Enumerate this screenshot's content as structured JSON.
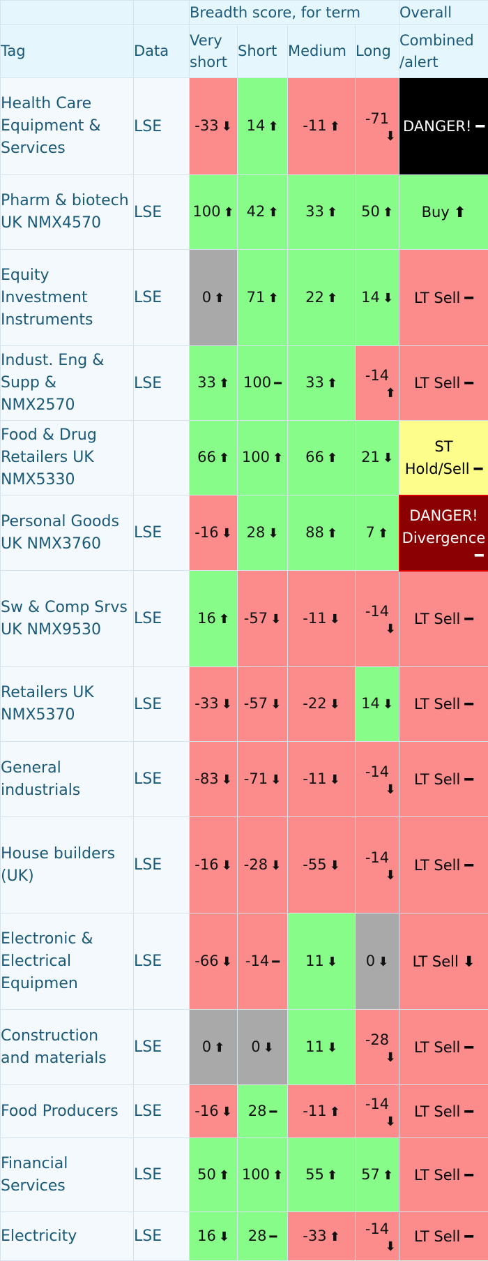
{
  "header": {
    "group_breadth": "Breadth score, for term",
    "group_overall": "Overall",
    "col_tag": "Tag",
    "col_data": "Data",
    "col_very_short_line1": "Very",
    "col_very_short_line2": "short",
    "col_short": "Short",
    "col_medium": "Medium",
    "col_long": "Long",
    "col_combined_line1": "Combined",
    "col_combined_line2": "/alert"
  },
  "colors": {
    "green": "#88fc88",
    "red": "#fc8c8c",
    "grey": "#a9a9a9",
    "black": "#000000",
    "yellow": "#fdfd8c",
    "maroon": "#8b0000",
    "header_bg": "#e6f6fd",
    "header_text": "#1a5a78"
  },
  "rows": [
    {
      "tag_lines": [
        "Health Care",
        "Equipment &",
        "Services"
      ],
      "data": "LSE",
      "scores": [
        {
          "value": "-33",
          "arrow": "down",
          "color": "red"
        },
        {
          "value": "14",
          "arrow": "up",
          "color": "green"
        },
        {
          "value": "-11",
          "arrow": "up",
          "color": "red"
        },
        {
          "value": "-71",
          "arrow": "down",
          "color": "red",
          "wrap": true
        }
      ],
      "overall": {
        "text": "DANGER!",
        "arrow": "flat",
        "color": "black"
      }
    },
    {
      "tag_lines": [
        "Pharm & biotech",
        "UK NMX4570"
      ],
      "data": "LSE",
      "scores": [
        {
          "value": "100",
          "arrow": "up",
          "color": "green"
        },
        {
          "value": "42",
          "arrow": "up",
          "color": "green"
        },
        {
          "value": "33",
          "arrow": "up",
          "color": "green"
        },
        {
          "value": "50",
          "arrow": "up",
          "color": "green"
        }
      ],
      "overall": {
        "text": "Buy",
        "arrow": "up",
        "color": "green"
      }
    },
    {
      "tag_lines": [
        "Equity",
        "Investment",
        "Instruments"
      ],
      "data": "LSE",
      "scores": [
        {
          "value": "0",
          "arrow": "up",
          "color": "grey"
        },
        {
          "value": "71",
          "arrow": "up",
          "color": "green"
        },
        {
          "value": "22",
          "arrow": "up",
          "color": "green"
        },
        {
          "value": "14",
          "arrow": "down",
          "color": "green"
        }
      ],
      "overall": {
        "text": "LT Sell",
        "arrow": "flat",
        "color": "red"
      }
    },
    {
      "tag_lines": [
        "Indust. Eng &",
        "Supp &",
        "NMX2570"
      ],
      "data": "LSE",
      "scores": [
        {
          "value": "33",
          "arrow": "up",
          "color": "green"
        },
        {
          "value": "100",
          "arrow": "flat",
          "color": "green"
        },
        {
          "value": "33",
          "arrow": "up",
          "color": "green"
        },
        {
          "value": "-14",
          "arrow": "up",
          "color": "red",
          "wrap": true
        }
      ],
      "overall": {
        "text": "LT Sell",
        "arrow": "flat",
        "color": "red"
      }
    },
    {
      "tag_lines": [
        "Food & Drug",
        "Retailers UK",
        "NMX5330"
      ],
      "data": "",
      "scores": [
        {
          "value": "66",
          "arrow": "up",
          "color": "green"
        },
        {
          "value": "100",
          "arrow": "up",
          "color": "green"
        },
        {
          "value": "66",
          "arrow": "up",
          "color": "green"
        },
        {
          "value": "21",
          "arrow": "down",
          "color": "green"
        }
      ],
      "overall": {
        "text_lines": [
          "ST",
          "Hold/Sell"
        ],
        "arrow": "flat",
        "color": "yellow"
      }
    },
    {
      "tag_lines": [
        "Personal Goods",
        "UK NMX3760"
      ],
      "data": "LSE",
      "scores": [
        {
          "value": "-16",
          "arrow": "down",
          "color": "red"
        },
        {
          "value": "28",
          "arrow": "down",
          "color": "green"
        },
        {
          "value": "88",
          "arrow": "up",
          "color": "green"
        },
        {
          "value": "7",
          "arrow": "up",
          "color": "green"
        }
      ],
      "overall": {
        "text_lines": [
          "DANGER!",
          "Divergence"
        ],
        "arrow": "flat",
        "color": "maroon",
        "arrow_wrap": true
      }
    },
    {
      "tag_lines": [
        "Sw & Comp Srvs",
        "UK NMX9530"
      ],
      "data": "LSE",
      "scores": [
        {
          "value": "16",
          "arrow": "up",
          "color": "green"
        },
        {
          "value": "-57",
          "arrow": "down",
          "color": "red"
        },
        {
          "value": "-11",
          "arrow": "down",
          "color": "red"
        },
        {
          "value": "-14",
          "arrow": "down",
          "color": "red",
          "wrap": true
        }
      ],
      "overall": {
        "text": "LT Sell",
        "arrow": "flat",
        "color": "red"
      }
    },
    {
      "tag_lines": [
        "Retailers UK",
        "NMX5370"
      ],
      "data": "LSE",
      "scores": [
        {
          "value": "-33",
          "arrow": "down",
          "color": "red"
        },
        {
          "value": "-57",
          "arrow": "down",
          "color": "red"
        },
        {
          "value": "-22",
          "arrow": "down",
          "color": "red"
        },
        {
          "value": "14",
          "arrow": "down",
          "color": "green"
        }
      ],
      "overall": {
        "text": "LT Sell",
        "arrow": "flat",
        "color": "red"
      }
    },
    {
      "tag_lines": [
        "General",
        "industrials"
      ],
      "data": "LSE",
      "scores": [
        {
          "value": "-83",
          "arrow": "down",
          "color": "red"
        },
        {
          "value": "-71",
          "arrow": "down",
          "color": "red"
        },
        {
          "value": "-11",
          "arrow": "down",
          "color": "red"
        },
        {
          "value": "-14",
          "arrow": "down",
          "color": "red",
          "wrap": true
        }
      ],
      "overall": {
        "text": "LT Sell",
        "arrow": "flat",
        "color": "red"
      }
    },
    {
      "tag_lines": [
        "House builders",
        "(UK)"
      ],
      "data": "LSE",
      "scores": [
        {
          "value": "-16",
          "arrow": "down",
          "color": "red"
        },
        {
          "value": "-28",
          "arrow": "down",
          "color": "red"
        },
        {
          "value": "-55",
          "arrow": "down",
          "color": "red"
        },
        {
          "value": "-14",
          "arrow": "down",
          "color": "red",
          "wrap": true
        }
      ],
      "overall": {
        "text": "LT Sell",
        "arrow": "flat",
        "color": "red"
      }
    },
    {
      "tag_lines": [
        "Electronic &",
        "Electrical",
        "Equipmen"
      ],
      "data": "LSE",
      "scores": [
        {
          "value": "-66",
          "arrow": "down",
          "color": "red"
        },
        {
          "value": "-14",
          "arrow": "flat",
          "color": "red"
        },
        {
          "value": "11",
          "arrow": "down",
          "color": "green"
        },
        {
          "value": "0",
          "arrow": "down",
          "color": "grey"
        }
      ],
      "overall": {
        "text": "LT Sell",
        "arrow": "down",
        "color": "red"
      }
    },
    {
      "tag_lines": [
        "Construction",
        "and materials"
      ],
      "data": "LSE",
      "scores": [
        {
          "value": "0",
          "arrow": "up",
          "color": "grey"
        },
        {
          "value": "0",
          "arrow": "down",
          "color": "grey"
        },
        {
          "value": "11",
          "arrow": "down",
          "color": "green"
        },
        {
          "value": "-28",
          "arrow": "down",
          "color": "red",
          "wrap": true
        }
      ],
      "overall": {
        "text": "LT Sell",
        "arrow": "flat",
        "color": "red"
      }
    },
    {
      "tag_lines": [
        "Food Producers"
      ],
      "data": "LSE",
      "scores": [
        {
          "value": "-16",
          "arrow": "down",
          "color": "red"
        },
        {
          "value": "28",
          "arrow": "flat",
          "color": "green"
        },
        {
          "value": "-11",
          "arrow": "up",
          "color": "red"
        },
        {
          "value": "-14",
          "arrow": "down",
          "color": "red",
          "wrap": true
        }
      ],
      "overall": {
        "text": "LT Sell",
        "arrow": "flat",
        "color": "red"
      }
    },
    {
      "tag_lines": [
        "Financial",
        "Services"
      ],
      "data": "LSE",
      "scores": [
        {
          "value": "50",
          "arrow": "up",
          "color": "green"
        },
        {
          "value": "100",
          "arrow": "up",
          "color": "green"
        },
        {
          "value": "55",
          "arrow": "up",
          "color": "green"
        },
        {
          "value": "57",
          "arrow": "up",
          "color": "green"
        }
      ],
      "overall": {
        "text": "LT Sell",
        "arrow": "flat",
        "color": "red"
      }
    },
    {
      "tag_lines": [
        "Electricity"
      ],
      "data": "LSE",
      "scores": [
        {
          "value": "16",
          "arrow": "down",
          "color": "green"
        },
        {
          "value": "28",
          "arrow": "flat",
          "color": "green"
        },
        {
          "value": "-33",
          "arrow": "up",
          "color": "red"
        },
        {
          "value": "-14",
          "arrow": "down",
          "color": "red",
          "wrap": true
        }
      ],
      "overall": {
        "text": "LT Sell",
        "arrow": "flat",
        "color": "red"
      }
    }
  ]
}
